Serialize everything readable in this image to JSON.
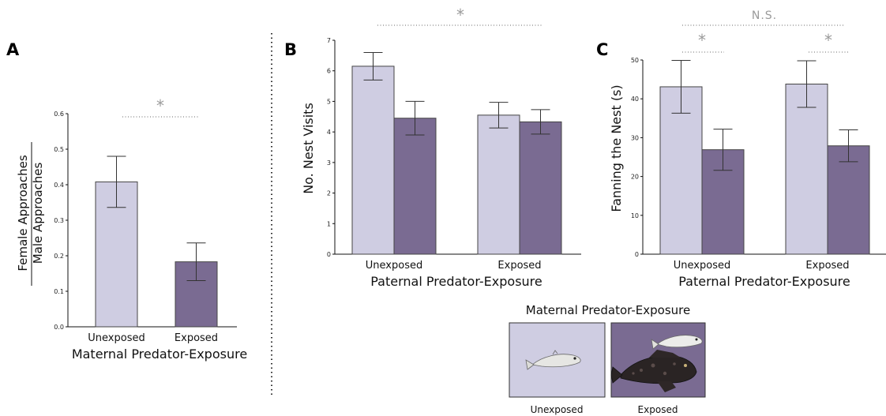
{
  "colors": {
    "unexposed": "#cfcde2",
    "exposed": "#7a6b92",
    "significance": "#9a9a9a"
  },
  "chart_data": [
    {
      "panel": "A",
      "type": "bar",
      "categories": [
        "Unexposed",
        "Exposed"
      ],
      "values": [
        0.408,
        0.183
      ],
      "error": [
        0.072,
        0.053
      ],
      "ylabel_top": "Female Approaches",
      "ylabel_bottom": "Male Approaches",
      "xlabel": "Maternal Predator-Exposure",
      "ylim": [
        0,
        0.6
      ],
      "yticks": [
        "0.0",
        "0.1",
        "0.2",
        "0.3",
        "0.4",
        "0.5",
        "0.6"
      ],
      "significance": "*"
    },
    {
      "panel": "B",
      "type": "bar",
      "categories": [
        "Unexposed",
        "Exposed"
      ],
      "series": [
        {
          "values": [
            6.15,
            4.55
          ],
          "error": [
            0.45,
            0.42
          ]
        },
        {
          "values": [
            4.45,
            4.33
          ],
          "error": [
            0.55,
            0.4
          ]
        }
      ],
      "ylabel": "No. Nest Visits",
      "xlabel": "Paternal Predator-Exposure",
      "ylim": [
        0,
        7
      ],
      "yticks": [
        "0",
        "1",
        "2",
        "3",
        "4",
        "5",
        "6",
        "7"
      ],
      "significance": "*"
    },
    {
      "panel": "C",
      "type": "bar",
      "categories": [
        "Unexposed",
        "Exposed"
      ],
      "series": [
        {
          "values": [
            43.1,
            43.8
          ],
          "error": [
            6.8,
            6.0
          ]
        },
        {
          "values": [
            26.9,
            27.9
          ],
          "error": [
            5.3,
            4.1
          ]
        }
      ],
      "ylabel": "Fanning the Nest (s)",
      "xlabel": "Paternal Predator-Exposure",
      "ylim": [
        0,
        50
      ],
      "yticks": [
        "0",
        "10",
        "20",
        "30",
        "40",
        "50"
      ],
      "significance_top": "N.S.",
      "significance_groups": [
        "*",
        "*"
      ]
    }
  ],
  "legend": {
    "title": "Maternal Predator-Exposure",
    "items": [
      "Unexposed",
      "Exposed"
    ]
  }
}
